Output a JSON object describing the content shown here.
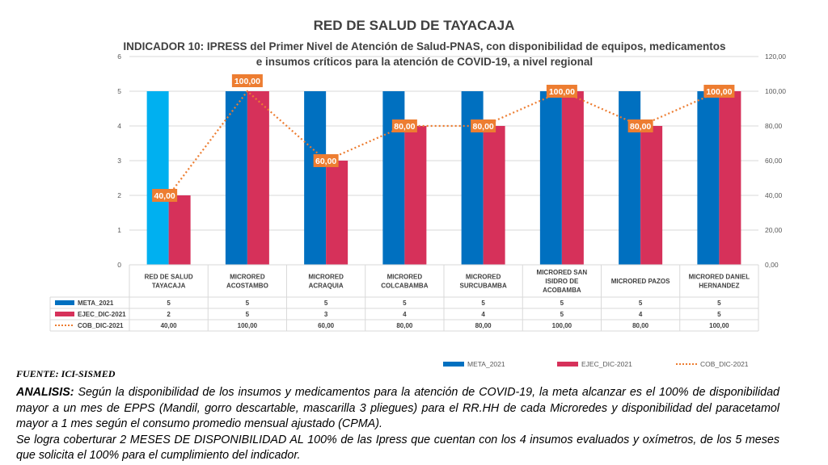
{
  "chart_data": {
    "type": "bar",
    "title": "RED DE SALUD DE TAYACAJA",
    "subtitle": "INDICADOR 10:  IPRESS del Primer Nivel de Atención de Salud-PNAS, con disponibilidad de equipos, medicamentos e insumos críticos para la atención de COVID-19, a nivel regional",
    "categories": [
      "RED DE SALUD TAYACAJA",
      "MICRORED ACOSTAMBO",
      "MICRORED ACRAQUIA",
      "MICRORED COLCABAMBA",
      "MICRORED SURCUBAMBA",
      "MICRORED SAN ISIDRO DE ACOBAMBA",
      "MICRORED PAZOS",
      "MICRORED DANIEL HERNANDEZ"
    ],
    "series": [
      {
        "name": "META_2021",
        "type": "bar",
        "axis": "left",
        "color": "#0070c0",
        "highlight_first_color": "#00b0f0",
        "values": [
          5,
          5,
          5,
          5,
          5,
          5,
          5,
          5
        ],
        "labels": [
          "5",
          "5",
          "5",
          "5",
          "5",
          "5",
          "5",
          "5"
        ]
      },
      {
        "name": "EJEC_DIC-2021",
        "type": "bar",
        "axis": "left",
        "color": "#d6315a",
        "values": [
          2,
          5,
          3,
          4,
          4,
          5,
          4,
          5
        ],
        "labels": [
          "2",
          "5",
          "3",
          "4",
          "4",
          "5",
          "4",
          "5"
        ]
      },
      {
        "name": "COB_DIC-2021",
        "type": "line",
        "style": "dotted",
        "axis": "right",
        "color": "#ed7d31",
        "values": [
          40,
          100,
          60,
          80,
          80,
          100,
          80,
          100
        ],
        "labels": [
          "40,00",
          "100,00",
          "60,00",
          "80,00",
          "80,00",
          "100,00",
          "80,00",
          "100,00"
        ]
      }
    ],
    "ylim": [
      0,
      6
    ],
    "y_ticks": [
      "0",
      "1",
      "2",
      "3",
      "4",
      "5",
      "6"
    ],
    "y2lim": [
      0,
      120
    ],
    "y2_ticks": [
      "0,00",
      "20,00",
      "40,00",
      "60,00",
      "80,00",
      "100,00",
      "120,00"
    ],
    "grid": true,
    "data_table": true,
    "legend_position": "bottom"
  },
  "footer": {
    "source": "FUENTE: ICI-SISMED",
    "analysis_label": "ANALISIS:",
    "analysis_text": " Según la disponibilidad de los insumos y medicamentos para la atención de COVID-19, la meta alcanzar es el 100% de disponibilidad mayor a un mes de EPPS (Mandil, gorro descartable, mascarilla 3 pliegues)  para el RR.HH de cada Microredes y disponibilidad del paracetamol mayor a 1 mes según el consumo promedio mensual ajustado (CPMA).",
    "analysis_text_2": "Se logra coberturar 2 MESES DE DISPONIBILIDAD AL 100% de las Ipress que cuentan con los 4 insumos evaluados y oxímetros, de los 5 meses que solicita el 100% para el cumplimiento del indicador."
  }
}
